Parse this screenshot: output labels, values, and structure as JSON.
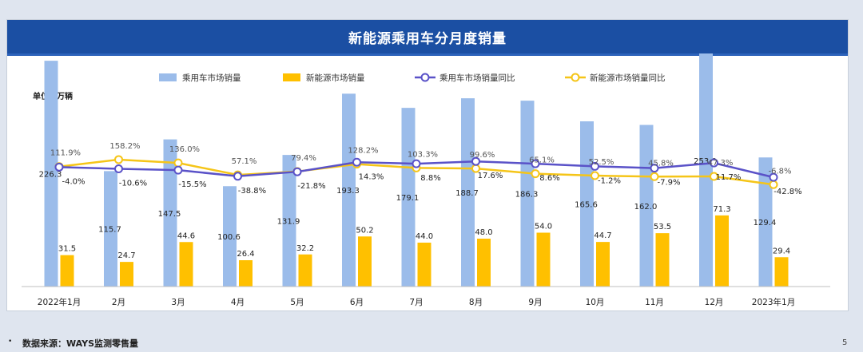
{
  "title": "新能源乘用车分月度销量",
  "unit_label": "单位：万辆",
  "footer": {
    "bullet": "•",
    "source": "数据来源：WAYS监测零售量",
    "page": "5"
  },
  "colors": {
    "header": "#1b4fa3",
    "bar_total": "#9bbcea",
    "bar_nev": "#ffc000",
    "line_total": "#5a52c8",
    "line_nev": "#f5c518"
  },
  "chart_data": {
    "type": "bar",
    "title": "新能源乘用车分月度销量",
    "categories": [
      "2022年1月",
      "2月",
      "3月",
      "4月",
      "5月",
      "6月",
      "7月",
      "8月",
      "9月",
      "10月",
      "11月",
      "12月",
      "2023年1月"
    ],
    "series": [
      {
        "name": "乘用车市场销量",
        "kind": "bar",
        "values": [
          226.3,
          115.7,
          147.5,
          100.6,
          131.9,
          193.3,
          179.1,
          188.7,
          186.3,
          165.6,
          162.0,
          253.0,
          129.4
        ]
      },
      {
        "name": "新能源市场销量",
        "kind": "bar",
        "values": [
          31.5,
          24.7,
          44.6,
          26.4,
          32.2,
          50.2,
          44.0,
          48.0,
          54.0,
          44.7,
          53.5,
          71.3,
          29.4
        ]
      },
      {
        "name": "乘用车市场销量同比",
        "kind": "line",
        "values": [
          "-4.0%",
          "-10.6%",
          "-15.5%",
          "-38.8%",
          "-21.8%",
          "14.3%",
          "8.8%",
          "17.6%",
          "8.6%",
          "-1.2%",
          "-7.9%",
          "11.7%",
          "-42.8%"
        ]
      },
      {
        "name": "新能源市场销量同比",
        "kind": "line",
        "values": [
          "111.9%",
          "158.2%",
          "136.0%",
          "57.1%",
          "79.4%",
          "128.2%",
          "103.3%",
          "99.6%",
          "65.1%",
          "52.5%",
          "45.8%",
          "47.3%",
          "-6.8%"
        ]
      }
    ],
    "legend_position": "top",
    "grid": false
  }
}
